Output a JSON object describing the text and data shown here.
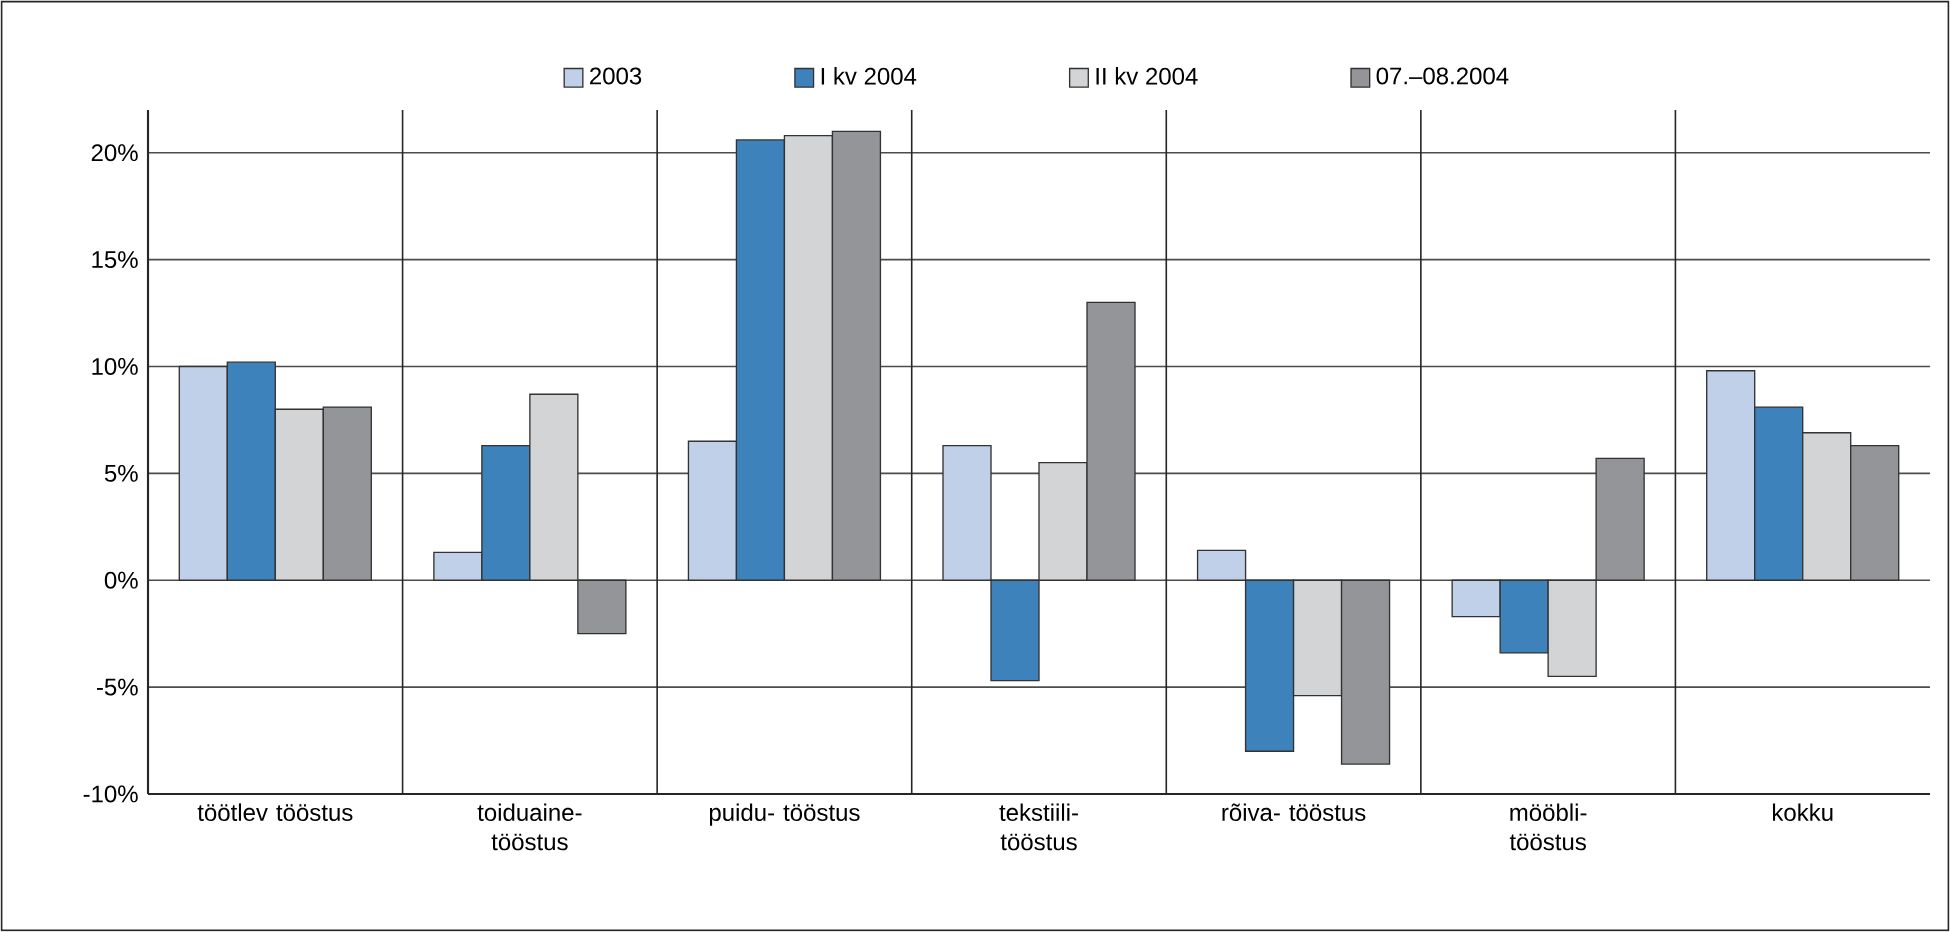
{
  "chart_data": {
    "type": "bar",
    "categories": [
      "töötlev tööstus",
      "toiduaine- tööstus",
      "puidu- tööstus",
      "tekstiili- tööstus",
      "rõiva- tööstus",
      "mööbli- tööstus",
      "kokku"
    ],
    "series": [
      {
        "name": "2003",
        "color": "#c0d0e8",
        "values": [
          10.0,
          1.3,
          6.5,
          6.3,
          1.4,
          -1.7,
          9.8
        ]
      },
      {
        "name": "I kv 2004",
        "color": "#3d82bb",
        "values": [
          10.2,
          6.3,
          20.6,
          -4.7,
          -8.0,
          -3.4,
          8.1
        ]
      },
      {
        "name": "II kv 2004",
        "color": "#d3d4d6",
        "values": [
          8.0,
          8.7,
          20.8,
          5.5,
          -5.4,
          -4.5,
          6.9
        ]
      },
      {
        "name": "07.–08.2004",
        "color": "#939598",
        "values": [
          8.1,
          -2.5,
          21.0,
          13.0,
          -8.6,
          5.7,
          6.3
        ]
      }
    ],
    "ylim": [
      -10,
      22
    ],
    "yticks": [
      {
        "value": -10,
        "label": "-10%"
      },
      {
        "value": -5,
        "label": "-5%"
      },
      {
        "value": 0,
        "label": "0%"
      },
      {
        "value": 5,
        "label": "5%"
      },
      {
        "value": 10,
        "label": "10%"
      },
      {
        "value": 15,
        "label": "15%"
      },
      {
        "value": 20,
        "label": "20%"
      }
    ],
    "grid": "y",
    "legend": "top"
  }
}
